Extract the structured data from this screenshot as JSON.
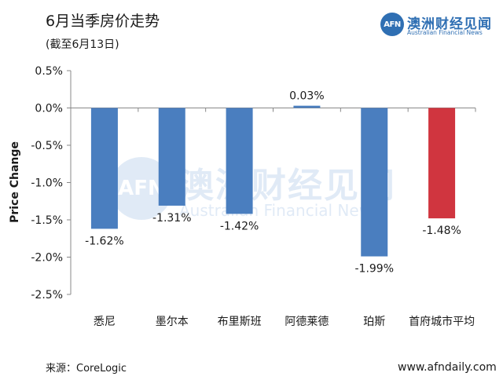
{
  "header": {
    "title": "6月当季房价走势",
    "subtitle": "(截至6月13日)"
  },
  "logo": {
    "mark": "AFN",
    "name_cn": "澳洲财经见闻",
    "name_en": "Australian Financial News",
    "color": "#2f6fb3"
  },
  "watermark": {
    "mark": "AFN",
    "name_cn": "澳洲财经见闻",
    "name_en": "Australian Financial News"
  },
  "footer": {
    "source": "来源：CoreLogic",
    "website": "www.afndaily.com"
  },
  "chart_data": {
    "type": "bar",
    "title": "6月当季房价走势",
    "subtitle": "(截至6月13日)",
    "xlabel": "",
    "ylabel": "Price Change",
    "ylim": [
      -2.5,
      0.5
    ],
    "yticks": [
      0.5,
      0.0,
      -0.5,
      -1.0,
      -1.5,
      -2.0,
      -2.5
    ],
    "ytick_labels": [
      "0.5%",
      "0.0%",
      "-0.5%",
      "-1.0%",
      "-1.5%",
      "-2.0%",
      "-2.5%"
    ],
    "grid": false,
    "legend": "none",
    "categories": [
      "悉尼",
      "墨尔本",
      "布里斯班",
      "阿德莱德",
      "珀斯",
      "首府城市平均"
    ],
    "values": [
      -1.62,
      -1.31,
      -1.42,
      0.03,
      -1.99,
      -1.48
    ],
    "data_labels": [
      "-1.62%",
      "-1.31%",
      "-1.42%",
      "0.03%",
      "-1.99%",
      "-1.48%"
    ],
    "colors": [
      "#4a7ebf",
      "#4a7ebf",
      "#4a7ebf",
      "#4a7ebf",
      "#4a7ebf",
      "#d0353f"
    ]
  }
}
